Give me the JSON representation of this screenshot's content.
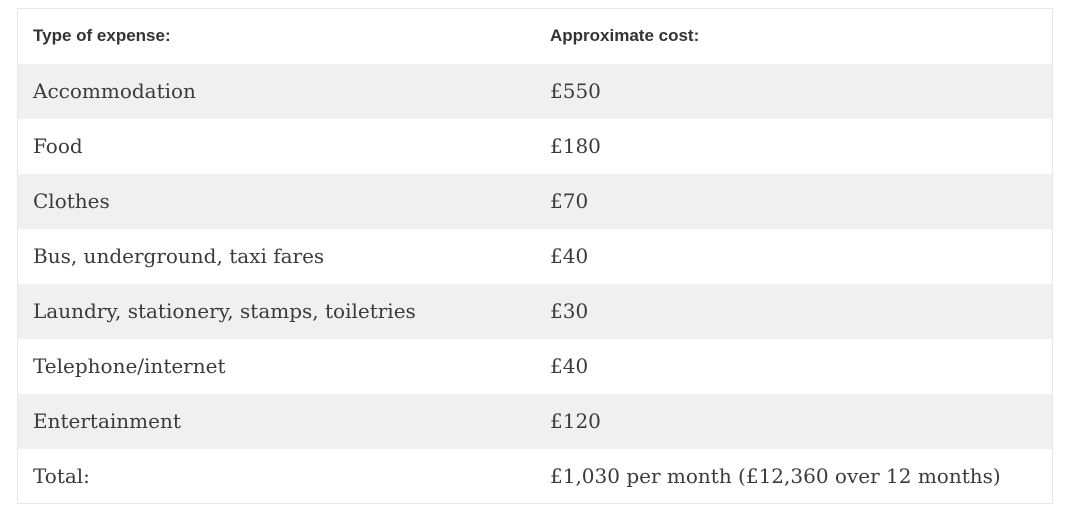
{
  "table": {
    "title": "monthly-expenses-table",
    "columns": [
      {
        "label": "Type of expense:"
      },
      {
        "label": "Approximate cost:"
      }
    ],
    "rows": [
      {
        "type": "Accommodation",
        "cost": "£550"
      },
      {
        "type": "Food",
        "cost": "£180"
      },
      {
        "type": "Clothes",
        "cost": "£70"
      },
      {
        "type": "Bus, underground, taxi fares",
        "cost": "£40"
      },
      {
        "type": "Laundry, stationery, stamps, toiletries",
        "cost": "£30"
      },
      {
        "type": "Telephone/internet",
        "cost": "£40"
      },
      {
        "type": "Entertainment",
        "cost": "£120"
      },
      {
        "type": "Total:",
        "cost": "£1,030 per month (£12,360 over 12 months)"
      }
    ],
    "colors": {
      "stripe": "#f0f0f0",
      "row_white": "#ffffff",
      "border": "#e7e7e7",
      "header_text": "#333333",
      "body_text": "#3b3b3b"
    }
  }
}
